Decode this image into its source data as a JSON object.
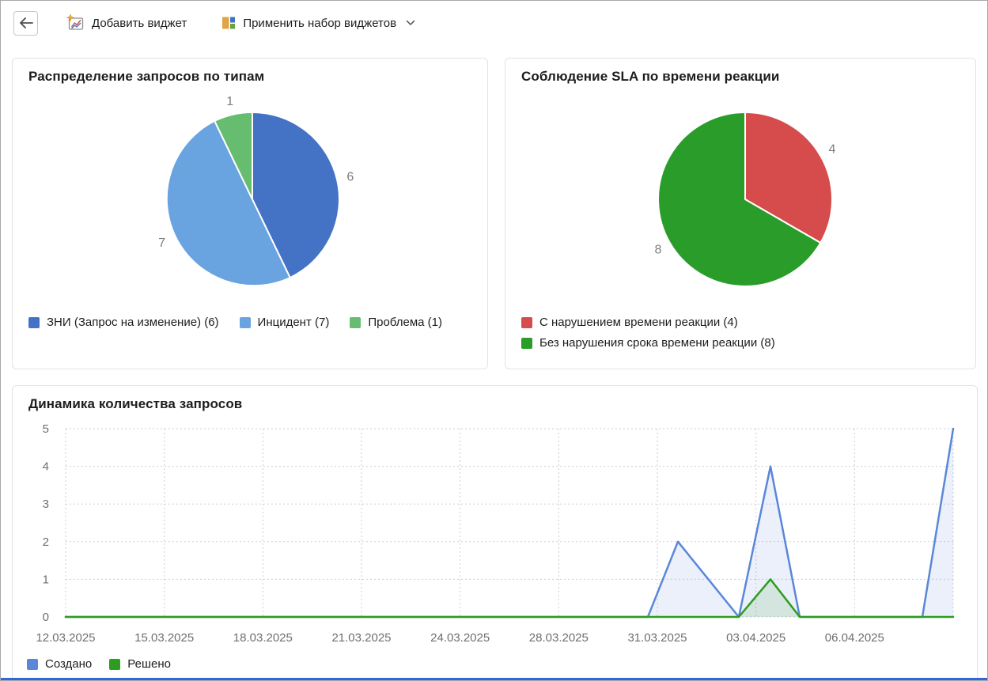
{
  "toolbar": {
    "back_button": {
      "icon": "left-arrow"
    },
    "add_widget_button": {
      "label": "Добавить виджет",
      "icon": "chart-with-sparkle"
    },
    "apply_widget_set_button": {
      "label": "Применить набор виджетов",
      "icon": "widget-layout",
      "has_dropdown": true
    }
  },
  "cards": {
    "requests_by_type": {
      "title": "Распределение запросов по типам",
      "legend": [
        {
          "label": "ЗНИ (Запрос на изменение) (6)",
          "color": "#4472c4"
        },
        {
          "label": "Инцидент (7)",
          "color": "#69a3e0"
        },
        {
          "label": "Проблема (1)",
          "color": "#66bd6f"
        }
      ]
    },
    "sla_reaction": {
      "title": "Соблюдение SLA по времени реакции",
      "legend": [
        {
          "label": "С нарушением времени реакции (4)",
          "color": "#d64b4b"
        },
        {
          "label": "Без нарушения срока времени реакции (8)",
          "color": "#2a9c2a"
        }
      ]
    },
    "requests_dynamics": {
      "title": "Динамика количества запросов",
      "legend": [
        {
          "label": "Создано",
          "color": "#5b87d8"
        },
        {
          "label": "Решено",
          "color": "#2e9c1e"
        }
      ]
    }
  },
  "chart_data": [
    {
      "type": "pie",
      "title": "Распределение запросов по типам",
      "labels": [
        "ЗНИ (Запрос на изменение)",
        "Инцидент",
        "Проблема"
      ],
      "values": [
        6,
        7,
        1
      ],
      "colors": [
        "#4472c4",
        "#69a3e0",
        "#66bd6f"
      ],
      "start_angle_deg": 0,
      "direction": "clockwise",
      "value_labels_shown": true
    },
    {
      "type": "pie",
      "title": "Соблюдение SLA по времени реакции",
      "labels": [
        "С нарушением времени реакции",
        "Без нарушения срока времени реакции"
      ],
      "values": [
        4,
        8
      ],
      "colors": [
        "#d64b4b",
        "#2a9c2a"
      ],
      "start_angle_deg": 0,
      "direction": "clockwise",
      "value_labels_shown": true
    },
    {
      "type": "line",
      "title": "Динамика количества запросов",
      "x_tick_labels": [
        "12.03.2025",
        "15.03.2025",
        "18.03.2025",
        "21.03.2025",
        "24.03.2025",
        "28.03.2025",
        "31.03.2025",
        "03.04.2025",
        "06.04.2025"
      ],
      "ylim": [
        0,
        5
      ],
      "y_ticks": [
        0,
        1,
        2,
        3,
        4,
        5
      ],
      "grid": "dotted",
      "legend_position": "bottom",
      "series": [
        {
          "name": "Создано",
          "color": "#5b87d8",
          "fill": "rgba(91,135,216,0.12)",
          "points_xfrac_value": [
            [
              0,
              0
            ],
            [
              0.656,
              0
            ],
            [
              0.6898,
              2
            ],
            [
              0.7585,
              0
            ],
            [
              0.7941,
              4
            ],
            [
              0.8271,
              0
            ],
            [
              0.9652,
              0
            ],
            [
              1,
              5
            ]
          ],
          "peak_readings": {
            "01.04.2025": 2,
            "04.04.2025": 4,
            "08.04.2025": 5
          }
        },
        {
          "name": "Решено",
          "color": "#2e9c1e",
          "fill": "rgba(46,156,30,0.12)",
          "points_xfrac_value": [
            [
              0,
              0
            ],
            [
              0.7585,
              0
            ],
            [
              0.7941,
              1
            ],
            [
              0.8271,
              0
            ],
            [
              1,
              0
            ]
          ],
          "peak_readings": {
            "04.04.2025": 1
          }
        }
      ]
    }
  ]
}
